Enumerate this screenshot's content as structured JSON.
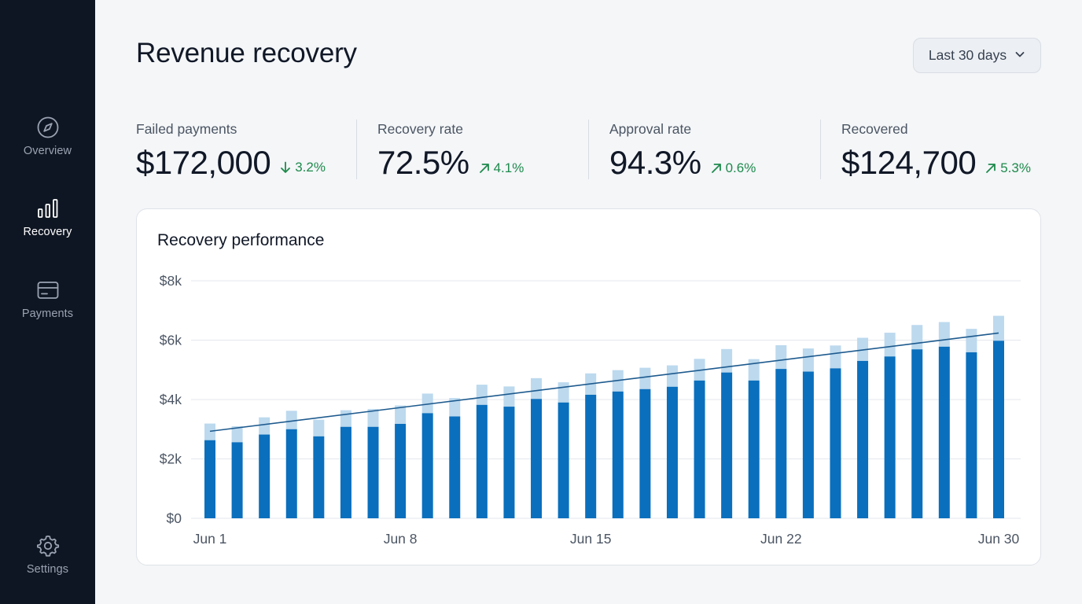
{
  "sidebar": {
    "items": [
      {
        "label": "Overview",
        "icon": "compass-icon",
        "active": false
      },
      {
        "label": "Recovery",
        "icon": "bar-chart-icon",
        "active": true
      },
      {
        "label": "Payments",
        "icon": "credit-card-icon",
        "active": false
      },
      {
        "label": "Settings",
        "icon": "gear-icon",
        "active": false
      }
    ]
  },
  "header": {
    "title": "Revenue recovery",
    "range_label": "Last 30 days"
  },
  "kpis": [
    {
      "label": "Failed payments",
      "value": "$172,000",
      "delta": "3.2%",
      "direction": "down"
    },
    {
      "label": "Recovery rate",
      "value": "72.5%",
      "delta": "4.1%",
      "direction": "up"
    },
    {
      "label": "Approval rate",
      "value": "94.3%",
      "delta": "0.6%",
      "direction": "up"
    },
    {
      "label": "Recovered",
      "value": "$124,700",
      "delta": "5.3%",
      "direction": "up"
    }
  ],
  "colors": {
    "sidebar_bg": "#0f1623",
    "accent": "#0a6fbd",
    "accent_light": "#bcd9ee",
    "positive": "#1e8a4c",
    "trend_line": "#1d5a8e"
  },
  "chart": {
    "title": "Recovery performance"
  },
  "chart_data": {
    "type": "bar",
    "stacked": true,
    "title": "Recovery performance",
    "xlabel": "",
    "ylabel": "",
    "ylim": [
      0,
      8000
    ],
    "y_ticks": [
      "$0",
      "$2k",
      "$4k",
      "$6k",
      "$8k"
    ],
    "y_tick_values": [
      0,
      2000,
      4000,
      6000,
      8000
    ],
    "x_tick_labels": [
      "Jun 1",
      "Jun 8",
      "Jun 15",
      "Jun 22",
      "Jun 30"
    ],
    "x_tick_positions": [
      0,
      7,
      14,
      21,
      29
    ],
    "categories": [
      "Jun 1",
      "Jun 2",
      "Jun 3",
      "Jun 4",
      "Jun 5",
      "Jun 6",
      "Jun 7",
      "Jun 8",
      "Jun 9",
      "Jun 10",
      "Jun 11",
      "Jun 12",
      "Jun 13",
      "Jun 14",
      "Jun 15",
      "Jun 16",
      "Jun 17",
      "Jun 18",
      "Jun 19",
      "Jun 20",
      "Jun 21",
      "Jun 22",
      "Jun 23",
      "Jun 24",
      "Jun 25",
      "Jun 26",
      "Jun 27",
      "Jun 28",
      "Jun 29",
      "Jun 30"
    ],
    "series": [
      {
        "color": "#0a6fbd",
        "values": [
          2630,
          2560,
          2820,
          3000,
          2760,
          3080,
          3080,
          3180,
          3540,
          3430,
          3820,
          3760,
          4020,
          3900,
          4160,
          4270,
          4350,
          4430,
          4640,
          4910,
          4640,
          5030,
          4940,
          5050,
          5300,
          5450,
          5690,
          5780,
          5590,
          5980
        ]
      },
      {
        "color": "#bcd9ee",
        "values": [
          560,
          540,
          580,
          620,
          560,
          560,
          600,
          620,
          660,
          620,
          680,
          680,
          700,
          680,
          720,
          720,
          720,
          720,
          730,
          790,
          720,
          800,
          780,
          770,
          780,
          800,
          820,
          830,
          790,
          840
        ]
      }
    ],
    "trend_line": {
      "start": [
        0,
        2930
      ],
      "end": [
        29,
        6240
      ]
    },
    "grid": true,
    "legend": "none"
  }
}
